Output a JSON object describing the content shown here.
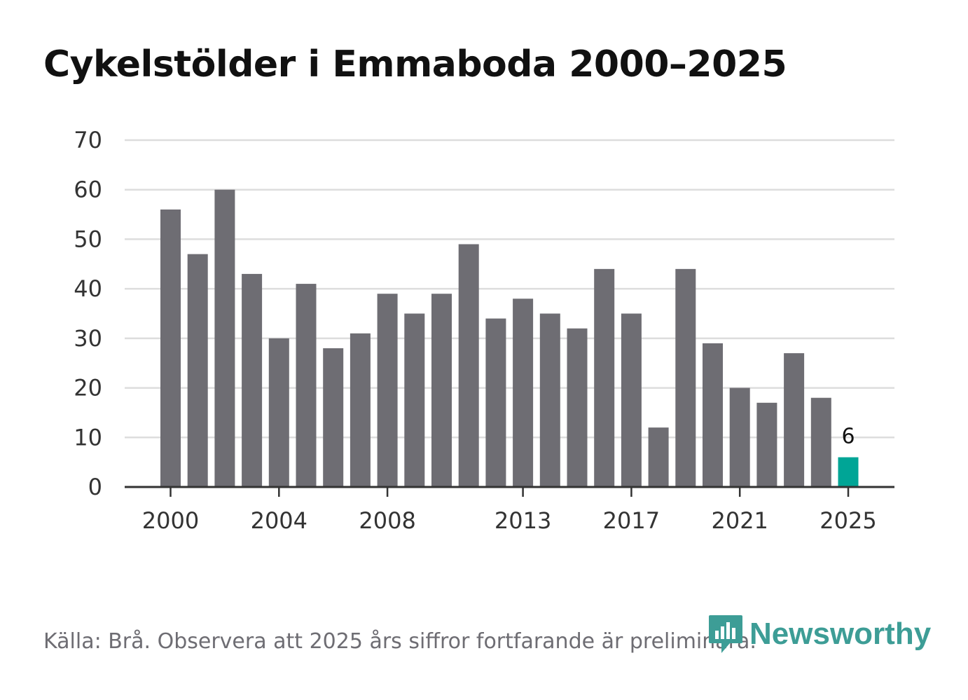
{
  "chart_data": {
    "type": "bar",
    "title": "Cykelstölder i Emmaboda 2000–2025",
    "xlabel": "",
    "ylabel": "",
    "ylim": [
      0,
      70
    ],
    "yticks": [
      0,
      10,
      20,
      30,
      40,
      50,
      60,
      70
    ],
    "xtick_labels": [
      "2000",
      "2004",
      "2008",
      "2013",
      "2017",
      "2021",
      "2025"
    ],
    "categories": [
      "2000",
      "2001",
      "2002",
      "2003",
      "2004",
      "2005",
      "2006",
      "2007",
      "2008",
      "2009",
      "2010",
      "2011",
      "2012",
      "2013",
      "2014",
      "2015",
      "2016",
      "2017",
      "2018",
      "2019",
      "2020",
      "2021",
      "2022",
      "2023",
      "2024",
      "2025"
    ],
    "values": [
      56,
      47,
      60,
      43,
      30,
      41,
      28,
      31,
      39,
      35,
      39,
      49,
      34,
      38,
      35,
      32,
      44,
      35,
      12,
      44,
      29,
      20,
      17,
      27,
      18,
      6
    ],
    "highlight": {
      "category": "2025",
      "label": "6"
    },
    "colors": {
      "bar": "#6e6d73",
      "highlight": "#00a596",
      "grid": "#dddddd",
      "axis": "#333333"
    },
    "grid": true
  },
  "footer": {
    "source": "Källa: Brå. Observera att 2025 års siffror fortfarande är preliminära."
  },
  "brand": {
    "name": "Newsworthy",
    "icon": "newsworthy-logo-icon",
    "color": "#3d9d96"
  }
}
